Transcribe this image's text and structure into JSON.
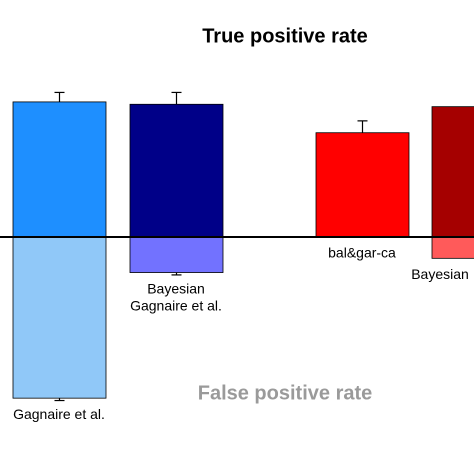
{
  "chart_data": {
    "type": "diverging-bar",
    "title": "True positive rate",
    "lower_title": "False positive rate",
    "categories": [
      [
        "Gagnaire et al."
      ],
      [
        "Bayesian",
        "Gagnaire et al."
      ],
      [
        "bal&gar-ca"
      ],
      [
        "Bayesian"
      ]
    ],
    "ylim": [
      -1,
      1
    ],
    "series": [
      {
        "name": "True positive rate",
        "direction": "up",
        "colors": [
          "#1e8fff",
          "#000088",
          "#ff0000",
          "#a50000"
        ],
        "values": [
          0.57,
          0.56,
          0.44,
          0.55
        ],
        "errors": [
          0.04,
          0.05,
          0.05,
          null
        ]
      },
      {
        "name": "False positive rate",
        "direction": "down",
        "colors": [
          "#90c8f8",
          "#7272ff",
          "#ff6060",
          "#ff5a5a"
        ],
        "values": [
          0.68,
          0.15,
          0,
          0.09
        ],
        "errors": [
          0.01,
          0.01,
          null,
          null
        ]
      }
    ]
  }
}
